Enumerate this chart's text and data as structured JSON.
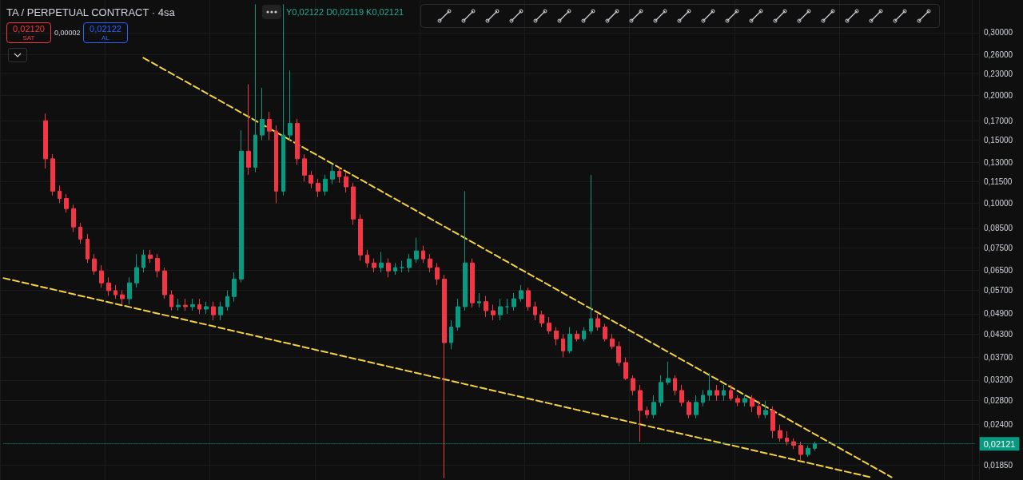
{
  "chart_data": {
    "type": "candlestick",
    "title": "TA / PERPETUAL CONTRACT · 4sa",
    "annotations": [
      "Y0,02122 D0,02119 K0,02121",
      "0,02120",
      "SAT",
      "0,00002",
      "0,02122",
      "AL"
    ],
    "categories": [
      null,
      null,
      null,
      null,
      null,
      null,
      null,
      null,
      null,
      null,
      null,
      null,
      null,
      null,
      null,
      null,
      null,
      null,
      null,
      null,
      null,
      null,
      null,
      null,
      null,
      null,
      null,
      null,
      null,
      null,
      null,
      null,
      null,
      null,
      null,
      null,
      null,
      null,
      null,
      null,
      null,
      null,
      null,
      null,
      null,
      null,
      null,
      null,
      null,
      null,
      null,
      null,
      null,
      null,
      null,
      null,
      null,
      null,
      null,
      null,
      null,
      null,
      null,
      null,
      null,
      null,
      null,
      null,
      null,
      null,
      null,
      null,
      null,
      null,
      null,
      null,
      null,
      null,
      null,
      null,
      null,
      null,
      null,
      null,
      null,
      null,
      null,
      null,
      null,
      null,
      null,
      null,
      null,
      null,
      null,
      null,
      null,
      null,
      null,
      null,
      null,
      null,
      null,
      null,
      null,
      null,
      null,
      null,
      null,
      null,
      null,
      null,
      null,
      null,
      null,
      null,
      null,
      null,
      null,
      null,
      null,
      null,
      null,
      null,
      null,
      null,
      null,
      null,
      null,
      null,
      null,
      null,
      null,
      null,
      null,
      null,
      null,
      null,
      null,
      null
    ],
    "ohlc": [
      null,
      null,
      null,
      null,
      null,
      null,
      [
        0.17,
        0.178,
        0.125,
        0.133
      ],
      [
        0.133,
        0.137,
        0.105,
        0.108
      ],
      [
        0.108,
        0.112,
        0.1,
        0.103
      ],
      [
        0.103,
        0.106,
        0.094,
        0.0965
      ],
      [
        0.0965,
        0.099,
        0.083,
        0.0857
      ],
      [
        0.0857,
        0.088,
        0.077,
        0.0793
      ],
      [
        0.0793,
        0.082,
        0.068,
        0.0698
      ],
      [
        0.0698,
        0.072,
        0.063,
        0.0646
      ],
      [
        0.0646,
        0.067,
        0.058,
        0.0598
      ],
      [
        0.0598,
        0.062,
        0.055,
        0.0569
      ],
      [
        0.0569,
        0.059,
        0.054,
        0.0554
      ],
      [
        0.0554,
        0.057,
        0.052,
        0.054
      ],
      [
        0.054,
        0.062,
        0.052,
        0.0598
      ],
      [
        0.0598,
        0.072,
        0.058,
        0.066
      ],
      [
        0.066,
        0.074,
        0.064,
        0.0716
      ],
      [
        0.0716,
        0.074,
        0.068,
        0.07
      ],
      [
        0.07,
        0.072,
        0.062,
        0.0646
      ],
      [
        0.0646,
        0.066,
        0.054,
        0.0554
      ],
      [
        0.0554,
        0.057,
        0.05,
        0.0513
      ],
      [
        0.0513,
        0.054,
        0.05,
        0.0518
      ],
      [
        0.0518,
        0.054,
        0.05,
        0.0513
      ],
      [
        0.0513,
        0.054,
        0.05,
        0.052
      ],
      [
        0.052,
        0.054,
        0.049,
        0.0505
      ],
      [
        0.0505,
        0.053,
        0.049,
        0.0513
      ],
      [
        0.0513,
        0.053,
        0.047,
        0.0487
      ],
      [
        0.0487,
        0.053,
        0.047,
        0.0513
      ],
      [
        0.0513,
        0.057,
        0.05,
        0.0548
      ],
      [
        0.0548,
        0.064,
        0.053,
        0.0613
      ],
      [
        0.0613,
        0.16,
        0.06,
        0.1397
      ],
      [
        0.1397,
        0.215,
        0.12,
        0.126
      ],
      [
        0.126,
        0.36,
        0.122,
        0.155
      ],
      [
        0.155,
        0.21,
        0.15,
        0.1715
      ],
      [
        0.1715,
        0.18,
        0.15,
        0.159
      ],
      [
        0.159,
        0.165,
        0.1,
        0.108
      ],
      [
        0.108,
        0.36,
        0.105,
        0.155
      ],
      [
        0.155,
        0.235,
        0.15,
        0.167
      ],
      [
        0.167,
        0.172,
        0.128,
        0.133
      ],
      [
        0.133,
        0.137,
        0.115,
        0.1197
      ],
      [
        0.1197,
        0.123,
        0.11,
        0.1137
      ],
      [
        0.1137,
        0.117,
        0.104,
        0.108
      ],
      [
        0.108,
        0.12,
        0.105,
        0.1167
      ],
      [
        0.1167,
        0.128,
        0.113,
        0.1228
      ],
      [
        0.1228,
        0.126,
        0.114,
        0.1185
      ],
      [
        0.1185,
        0.122,
        0.107,
        0.111
      ],
      [
        0.111,
        0.114,
        0.087,
        0.0902
      ],
      [
        0.0902,
        0.093,
        0.069,
        0.0716
      ],
      [
        0.0716,
        0.074,
        0.066,
        0.068
      ],
      [
        0.068,
        0.07,
        0.064,
        0.066
      ],
      [
        0.066,
        0.073,
        0.064,
        0.068
      ],
      [
        0.068,
        0.07,
        0.062,
        0.0646
      ],
      [
        0.0646,
        0.068,
        0.063,
        0.066
      ],
      [
        0.066,
        0.069,
        0.064,
        0.066
      ],
      [
        0.066,
        0.072,
        0.064,
        0.0698
      ],
      [
        0.0698,
        0.08,
        0.068,
        0.0735
      ],
      [
        0.0735,
        0.076,
        0.068,
        0.0698
      ],
      [
        0.0698,
        0.072,
        0.064,
        0.066
      ],
      [
        0.066,
        0.068,
        0.059,
        0.0613
      ],
      [
        0.0613,
        0.063,
        0.017,
        0.0407
      ],
      [
        0.0407,
        0.047,
        0.039,
        0.045
      ],
      [
        0.045,
        0.054,
        0.044,
        0.0513
      ],
      [
        0.0513,
        0.108,
        0.05,
        0.068
      ],
      [
        0.068,
        0.07,
        0.051,
        0.0526
      ],
      [
        0.0526,
        0.056,
        0.051,
        0.053
      ],
      [
        0.053,
        0.055,
        0.048,
        0.05
      ],
      [
        0.05,
        0.052,
        0.047,
        0.0487
      ],
      [
        0.0487,
        0.054,
        0.047,
        0.0513
      ],
      [
        0.0513,
        0.054,
        0.049,
        0.0513
      ],
      [
        0.0513,
        0.056,
        0.05,
        0.054
      ],
      [
        0.054,
        0.059,
        0.053,
        0.0569
      ],
      [
        0.0569,
        0.058,
        0.05,
        0.0513
      ],
      [
        0.0513,
        0.053,
        0.047,
        0.0487
      ],
      [
        0.0487,
        0.05,
        0.045,
        0.0462
      ],
      [
        0.0462,
        0.048,
        0.043,
        0.0439
      ],
      [
        0.0439,
        0.045,
        0.04,
        0.0417
      ],
      [
        0.0417,
        0.043,
        0.037,
        0.0386
      ],
      [
        0.0386,
        0.045,
        0.038,
        0.043
      ],
      [
        0.043,
        0.044,
        0.041,
        0.0417
      ],
      [
        0.0417,
        0.045,
        0.041,
        0.0439
      ],
      [
        0.0439,
        0.12,
        0.043,
        0.0475
      ],
      [
        0.0475,
        0.049,
        0.044,
        0.045
      ],
      [
        0.045,
        0.046,
        0.041,
        0.0417
      ],
      [
        0.0417,
        0.043,
        0.039,
        0.0397
      ],
      [
        0.0397,
        0.041,
        0.035,
        0.0358
      ],
      [
        0.0358,
        0.037,
        0.032,
        0.0323
      ],
      [
        0.0323,
        0.033,
        0.029,
        0.0299
      ],
      [
        0.0299,
        0.031,
        0.0215,
        0.0263
      ],
      [
        0.0263,
        0.027,
        0.025,
        0.0256
      ],
      [
        0.0256,
        0.029,
        0.025,
        0.0277
      ],
      [
        0.0277,
        0.033,
        0.027,
        0.0315
      ],
      [
        0.0315,
        0.036,
        0.031,
        0.0323
      ],
      [
        0.0323,
        0.033,
        0.029,
        0.0299
      ],
      [
        0.0299,
        0.031,
        0.027,
        0.0277
      ],
      [
        0.0277,
        0.028,
        0.025,
        0.0256
      ],
      [
        0.0256,
        0.029,
        0.025,
        0.0277
      ],
      [
        0.0277,
        0.03,
        0.027,
        0.029
      ],
      [
        0.029,
        0.0335,
        0.028,
        0.0299
      ],
      [
        0.0299,
        0.031,
        0.028,
        0.029
      ],
      [
        0.029,
        0.031,
        0.028,
        0.0299
      ],
      [
        0.0299,
        0.031,
        0.028,
        0.0284
      ],
      [
        0.0284,
        0.029,
        0.027,
        0.0277
      ],
      [
        0.0277,
        0.029,
        0.027,
        0.0284
      ],
      [
        0.0284,
        0.029,
        0.026,
        0.027
      ],
      [
        0.027,
        0.028,
        0.025,
        0.0256
      ],
      [
        0.0256,
        0.028,
        0.025,
        0.0263
      ],
      [
        0.0263,
        0.027,
        0.022,
        0.0231
      ],
      [
        0.0231,
        0.024,
        0.0215,
        0.022
      ],
      [
        0.022,
        0.023,
        0.021,
        0.0215
      ],
      [
        0.0215,
        0.022,
        0.0205,
        0.021
      ],
      [
        0.021,
        0.0215,
        0.019,
        0.0198
      ],
      [
        0.0198,
        0.021,
        0.0195,
        0.0206
      ],
      [
        0.0206,
        0.0215,
        0.0203,
        0.02121
      ],
      null,
      null,
      null,
      null,
      null,
      null,
      null,
      null,
      null,
      null,
      null,
      null,
      null,
      null,
      null,
      null,
      null,
      null,
      null,
      null,
      null,
      null,
      null
    ],
    "series": [
      {
        "type": "line",
        "color": "#f5d33b",
        "line_style": "dashed",
        "values": [
          null,
          null,
          null,
          null,
          null,
          null,
          null,
          null,
          null,
          null,
          null,
          null,
          null,
          null,
          null,
          null,
          null,
          null,
          null,
          null,
          0.255,
          null,
          null,
          null,
          null,
          null,
          null,
          null,
          null,
          null,
          null,
          null,
          null,
          null,
          null,
          null,
          null,
          null,
          null,
          null,
          null,
          null,
          null,
          null,
          null,
          null,
          null,
          null,
          null,
          null,
          null,
          null,
          null,
          null,
          null,
          null,
          null,
          null,
          null,
          null,
          null,
          null,
          null,
          null,
          null,
          null,
          null,
          null,
          null,
          null,
          null,
          null,
          null,
          null,
          null,
          null,
          null,
          null,
          null,
          null,
          null,
          null,
          null,
          null,
          null,
          null,
          null,
          null,
          null,
          null,
          null,
          null,
          null,
          null,
          null,
          null,
          null,
          null,
          null,
          null,
          null,
          null,
          null,
          null,
          null,
          null,
          null,
          null,
          null,
          null,
          null,
          null,
          null,
          null,
          null,
          null,
          null,
          null,
          null,
          null,
          null,
          null,
          null,
          null,
          null,
          null,
          null,
          0.0171,
          null,
          null,
          null,
          null,
          null,
          null,
          null,
          null,
          null,
          null,
          null,
          null
        ]
      },
      {
        "type": "line",
        "color": "#f5d33b",
        "line_style": "dashed",
        "values": [
          0.0617,
          null,
          null,
          null,
          null,
          null,
          null,
          null,
          null,
          null,
          null,
          null,
          null,
          null,
          null,
          null,
          null,
          null,
          null,
          null,
          null,
          null,
          null,
          null,
          null,
          null,
          null,
          null,
          null,
          null,
          null,
          null,
          null,
          null,
          null,
          null,
          null,
          null,
          null,
          null,
          null,
          null,
          null,
          null,
          null,
          null,
          null,
          null,
          null,
          null,
          null,
          null,
          null,
          null,
          null,
          null,
          null,
          null,
          null,
          null,
          null,
          null,
          null,
          null,
          null,
          null,
          null,
          null,
          null,
          null,
          null,
          null,
          null,
          null,
          null,
          null,
          null,
          null,
          null,
          null,
          null,
          null,
          null,
          null,
          null,
          null,
          null,
          null,
          null,
          null,
          null,
          null,
          null,
          null,
          null,
          null,
          null,
          null,
          null,
          null,
          null,
          null,
          null,
          null,
          null,
          null,
          null,
          null,
          null,
          null,
          null,
          null,
          null,
          null,
          null,
          null,
          null,
          null,
          null,
          null,
          null,
          null,
          null,
          null,
          0.0171,
          null,
          null,
          null,
          null,
          null,
          null,
          null,
          null,
          null,
          null,
          null,
          null,
          null,
          null,
          null
        ]
      }
    ],
    "ylim": [
      0.0168,
      0.37
    ],
    "yticks": [
      {
        "value": 0.3,
        "label": "0,30000"
      },
      {
        "value": 0.26,
        "label": "0,26000"
      },
      {
        "value": 0.23,
        "label": "0,23000"
      },
      {
        "value": 0.2,
        "label": "0,20000"
      },
      {
        "value": 0.17,
        "label": "0,17000"
      },
      {
        "value": 0.15,
        "label": "0,15000"
      },
      {
        "value": 0.13,
        "label": "0,13000"
      },
      {
        "value": 0.115,
        "label": "0,11500"
      },
      {
        "value": 0.1,
        "label": "0,10000"
      },
      {
        "value": 0.085,
        "label": "0,08500"
      },
      {
        "value": 0.075,
        "label": "0,07500"
      },
      {
        "value": 0.065,
        "label": "0,06500"
      },
      {
        "value": 0.057,
        "label": "0,05700"
      },
      {
        "value": 0.049,
        "label": "0,04900"
      },
      {
        "value": 0.043,
        "label": "0,04300"
      },
      {
        "value": 0.037,
        "label": "0,03700"
      },
      {
        "value": 0.032,
        "label": "0,03200"
      },
      {
        "value": 0.028,
        "label": "0,02800"
      },
      {
        "value": 0.024,
        "label": "0,02400"
      },
      {
        "value": 0.0185,
        "label": "0,01850"
      }
    ],
    "log": true,
    "grid": true,
    "tick_labels": "y",
    "ref_lines": [
      {
        "axis": "y",
        "value": 0.02121,
        "label": "0,02121",
        "color": "#089981",
        "line_style": "dotted"
      }
    ]
  }
}
